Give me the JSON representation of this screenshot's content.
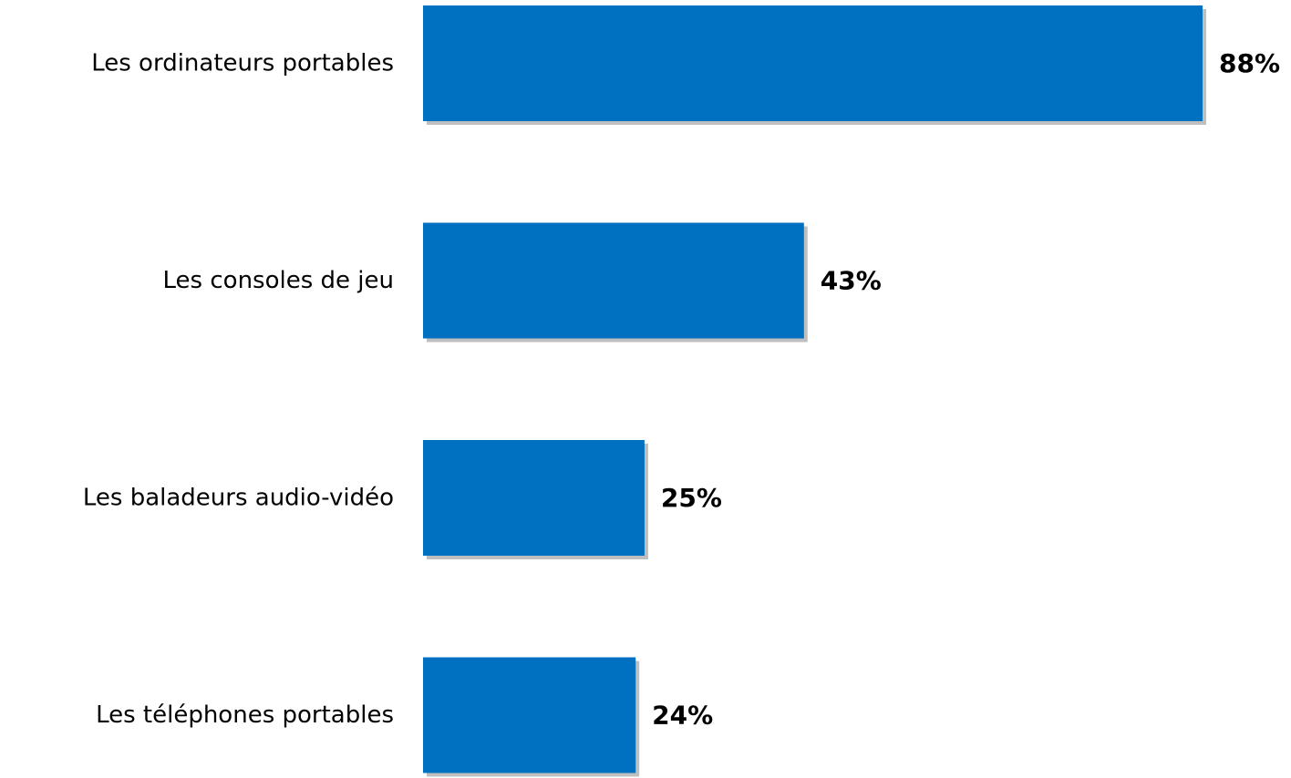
{
  "chart_data": {
    "type": "bar",
    "orientation": "horizontal",
    "categories": [
      "Les ordinateurs portables",
      "Les consoles de jeu",
      "Les baladeurs audio-vidéo",
      "Les téléphones portables"
    ],
    "values": [
      88,
      43,
      25,
      24
    ],
    "value_labels": [
      "88%",
      "43%",
      "25%",
      "24%"
    ],
    "unit": "%",
    "xlim": [
      0,
      88
    ],
    "grid": false,
    "legend": "none",
    "colors": {
      "bar": "#0070C0",
      "shadow": "#BFBFBF"
    }
  }
}
